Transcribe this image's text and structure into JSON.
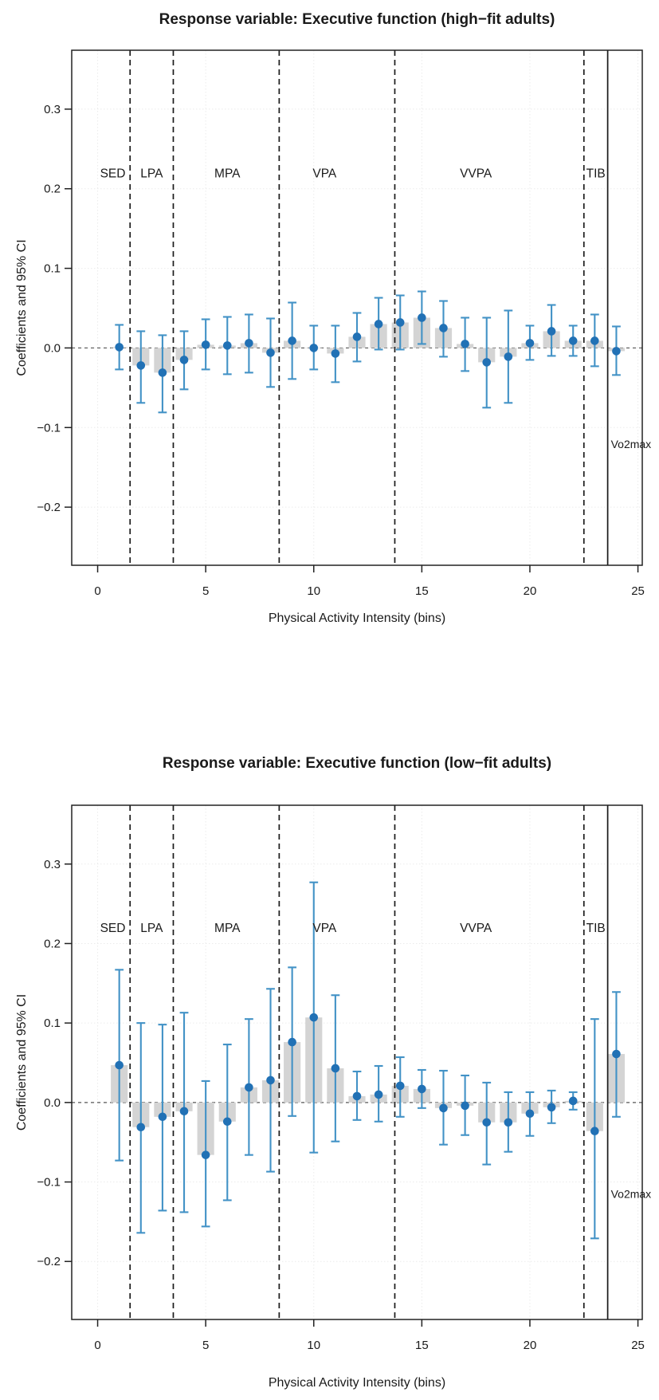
{
  "colors": {
    "point": "#2171b5",
    "errorbar": "#4292c6",
    "bar": "#d4d4d4",
    "zero_line": "#555555",
    "separator": "#1a1a1a",
    "grid": "#ebebeb",
    "box": "#222222",
    "text": "#1a1a1a"
  },
  "chart_data": [
    {
      "type": "bar",
      "title": "Response variable: Executive function (high−fit adults)",
      "xlabel": "Physical Activity Intensity (bins)",
      "ylabel": "Coefficients and 95% CI",
      "xlim": [
        -1.2,
        25.2
      ],
      "ylim": [
        -0.273,
        0.374
      ],
      "xticks": [
        0,
        5,
        10,
        15,
        20,
        25
      ],
      "xtick_labels": [
        "0",
        "5",
        "10",
        "15",
        "20",
        "25"
      ],
      "ytick_values": [
        0.3,
        0.2,
        0.1,
        0.0,
        -0.1,
        -0.2
      ],
      "ytick_labels": [
        "0.3",
        "0.2",
        "0.1",
        "0.0",
        "−0.1",
        "−0.2"
      ],
      "grid": true,
      "zero_line": 0,
      "x": [
        1,
        2,
        3,
        4,
        5,
        6,
        7,
        8,
        9,
        10,
        11,
        12,
        13,
        14,
        15,
        16,
        17,
        18,
        19,
        20,
        21,
        22,
        23,
        24
      ],
      "coef": [
        0.001,
        -0.022,
        -0.031,
        -0.015,
        0.004,
        0.003,
        0.006,
        -0.006,
        0.009,
        0.0,
        -0.007,
        0.014,
        0.03,
        0.032,
        0.038,
        0.025,
        0.005,
        -0.018,
        -0.011,
        0.006,
        0.021,
        0.009,
        0.009,
        -0.004
      ],
      "ci_low": [
        -0.027,
        -0.069,
        -0.081,
        -0.052,
        -0.027,
        -0.033,
        -0.031,
        -0.049,
        -0.039,
        -0.027,
        -0.043,
        -0.017,
        -0.002,
        -0.002,
        0.005,
        -0.011,
        -0.029,
        -0.075,
        -0.069,
        -0.015,
        -0.01,
        -0.01,
        -0.023,
        -0.034
      ],
      "ci_high": [
        0.029,
        0.021,
        0.016,
        0.021,
        0.036,
        0.039,
        0.042,
        0.037,
        0.057,
        0.028,
        0.028,
        0.044,
        0.063,
        0.066,
        0.071,
        0.059,
        0.038,
        0.038,
        0.047,
        0.028,
        0.054,
        0.028,
        0.042,
        0.027
      ],
      "separators_dashed": [
        1.5,
        3.5,
        8.4,
        13.75,
        22.5
      ],
      "separator_solid": 23.6,
      "region_labels": [
        {
          "text": "SED",
          "x": 0.7
        },
        {
          "text": "LPA",
          "x": 2.5
        },
        {
          "text": "MPA",
          "x": 6.0
        },
        {
          "text": "VPA",
          "x": 10.5
        },
        {
          "text": "VVPA",
          "x": 17.5
        },
        {
          "text": "TIB",
          "x": 23.05
        }
      ],
      "region_label_y": 0.22,
      "vo2max_label": {
        "text": "Vo2max",
        "y": -0.121
      },
      "legend": "none"
    },
    {
      "type": "bar",
      "title": "Response variable: Executive function (low−fit adults)",
      "xlabel": "Physical Activity Intensity (bins)",
      "ylabel": "Coefficients and 95% CI",
      "xlim": [
        -1.2,
        25.2
      ],
      "ylim": [
        -0.273,
        0.374
      ],
      "xticks": [
        0,
        5,
        10,
        15,
        20,
        25
      ],
      "xtick_labels": [
        "0",
        "5",
        "10",
        "15",
        "20",
        "25"
      ],
      "ytick_values": [
        0.3,
        0.2,
        0.1,
        0.0,
        -0.1,
        -0.2
      ],
      "ytick_labels": [
        "0.3",
        "0.2",
        "0.1",
        "0.0",
        "−0.1",
        "−0.2"
      ],
      "grid": true,
      "zero_line": 0,
      "x": [
        1,
        2,
        3,
        4,
        5,
        6,
        7,
        8,
        9,
        10,
        11,
        12,
        13,
        14,
        15,
        16,
        17,
        18,
        19,
        20,
        21,
        22,
        23,
        24
      ],
      "coef": [
        0.047,
        -0.031,
        -0.018,
        -0.011,
        -0.066,
        -0.024,
        0.019,
        0.028,
        0.076,
        0.107,
        0.043,
        0.008,
        0.01,
        0.021,
        0.017,
        -0.007,
        -0.004,
        -0.025,
        -0.025,
        -0.014,
        -0.006,
        0.002,
        -0.036,
        0.061
      ],
      "ci_low": [
        -0.073,
        -0.164,
        -0.136,
        -0.138,
        -0.156,
        -0.123,
        -0.066,
        -0.087,
        -0.017,
        -0.063,
        -0.049,
        -0.022,
        -0.024,
        -0.018,
        -0.007,
        -0.053,
        -0.041,
        -0.078,
        -0.062,
        -0.042,
        -0.026,
        -0.009,
        -0.171,
        -0.018
      ],
      "ci_high": [
        0.167,
        0.1,
        0.098,
        0.113,
        0.027,
        0.073,
        0.105,
        0.143,
        0.17,
        0.277,
        0.135,
        0.039,
        0.046,
        0.057,
        0.041,
        0.04,
        0.034,
        0.025,
        0.013,
        0.013,
        0.015,
        0.013,
        0.105,
        0.139
      ],
      "separators_dashed": [
        1.5,
        3.5,
        8.4,
        13.75,
        22.5
      ],
      "separator_solid": 23.6,
      "region_labels": [
        {
          "text": "SED",
          "x": 0.7
        },
        {
          "text": "LPA",
          "x": 2.5
        },
        {
          "text": "MPA",
          "x": 6.0
        },
        {
          "text": "VPA",
          "x": 10.5
        },
        {
          "text": "VVPA",
          "x": 17.5
        },
        {
          "text": "TIB",
          "x": 23.05
        }
      ],
      "region_label_y": 0.22,
      "vo2max_label": {
        "text": "Vo2max",
        "y": -0.115
      },
      "legend": "none"
    }
  ]
}
